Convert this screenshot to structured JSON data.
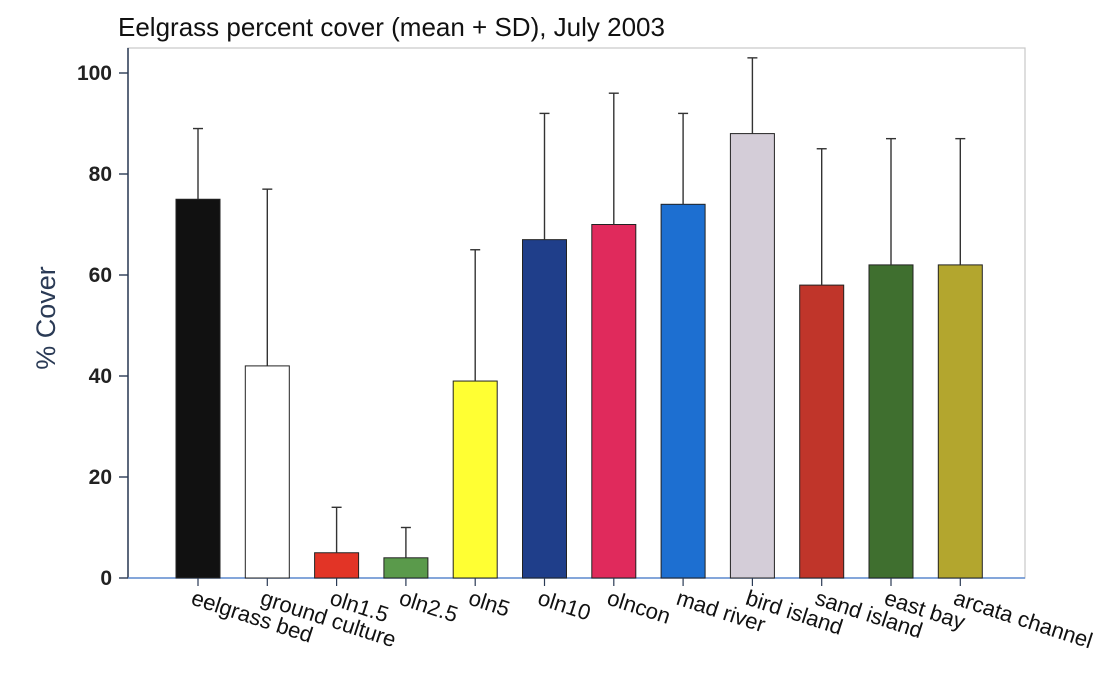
{
  "chart_data": {
    "type": "bar",
    "title": "Eelgrass percent cover (mean + SD), July 2003",
    "xlabel": "",
    "ylabel": "% Cover",
    "ylim": [
      0,
      105
    ],
    "yticks": [
      "0",
      "20",
      "40",
      "60",
      "80",
      "100"
    ],
    "grid": false,
    "legend": "none",
    "categories": [
      "eelgrass bed",
      "ground culture",
      "oln1.5",
      "oln2.5",
      "oln5",
      "oln10",
      "olncon",
      "mad river",
      "bird island",
      "sand island",
      "east bay",
      "arcata channel"
    ],
    "values": [
      75,
      42,
      5,
      4,
      39,
      67,
      70,
      74,
      88,
      58,
      62,
      62
    ],
    "sd_upper": [
      89,
      77,
      14,
      10,
      65,
      92,
      96,
      92,
      103,
      85,
      87,
      87
    ],
    "colors": [
      "#111111",
      "#ffffff",
      "#e23426",
      "#5a9a4b",
      "#ffff33",
      "#1f3e8a",
      "#e02a5c",
      "#1d6fd1",
      "#d4cdd8",
      "#c0352a",
      "#3f6f2f",
      "#b3a62e"
    ]
  }
}
